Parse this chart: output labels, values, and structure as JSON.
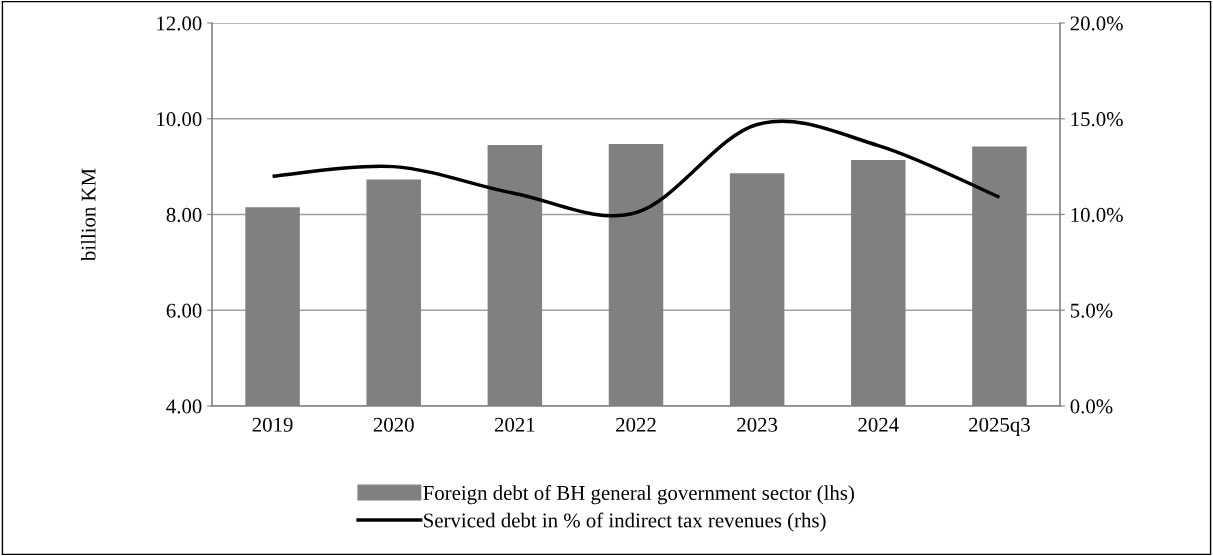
{
  "chart_data": {
    "type": "bar",
    "ylabel": "billion KM",
    "categories": [
      "2019",
      "2020",
      "2021",
      "2022",
      "2023",
      "2024",
      "2025q3"
    ],
    "series": [
      {
        "name": "Foreign debt of BH general government sector (lhs)",
        "color": "#808080",
        "values": [
          8.15,
          8.73,
          9.45,
          9.47,
          8.86,
          9.14,
          9.42
        ]
      },
      {
        "name": "Serviced debt in % of indirect tax revenues (rhs)",
        "type": "line",
        "axis": "y2",
        "color": "#000000",
        "values": [
          12.0,
          12.5,
          11.1,
          10.1,
          14.7,
          13.6,
          10.9
        ]
      }
    ],
    "ylim": [
      4,
      12
    ],
    "yticks": [
      {
        "value": 4,
        "label": "4.00"
      },
      {
        "value": 6,
        "label": "6.00"
      },
      {
        "value": 8,
        "label": "8.00"
      },
      {
        "value": 10,
        "label": "10.00"
      },
      {
        "value": 12,
        "label": "12.00"
      }
    ],
    "y2lim": [
      0,
      20
    ],
    "y2ticks": [
      {
        "value": 0,
        "label": "0.0%"
      },
      {
        "value": 5,
        "label": "5.0%"
      },
      {
        "value": 10,
        "label": "10.0%"
      },
      {
        "value": 15,
        "label": "15.0%"
      },
      {
        "value": 20,
        "label": "20.0%"
      }
    ],
    "grid": "y",
    "legend": "bottom",
    "marker": "none",
    "line_style": "solid"
  }
}
